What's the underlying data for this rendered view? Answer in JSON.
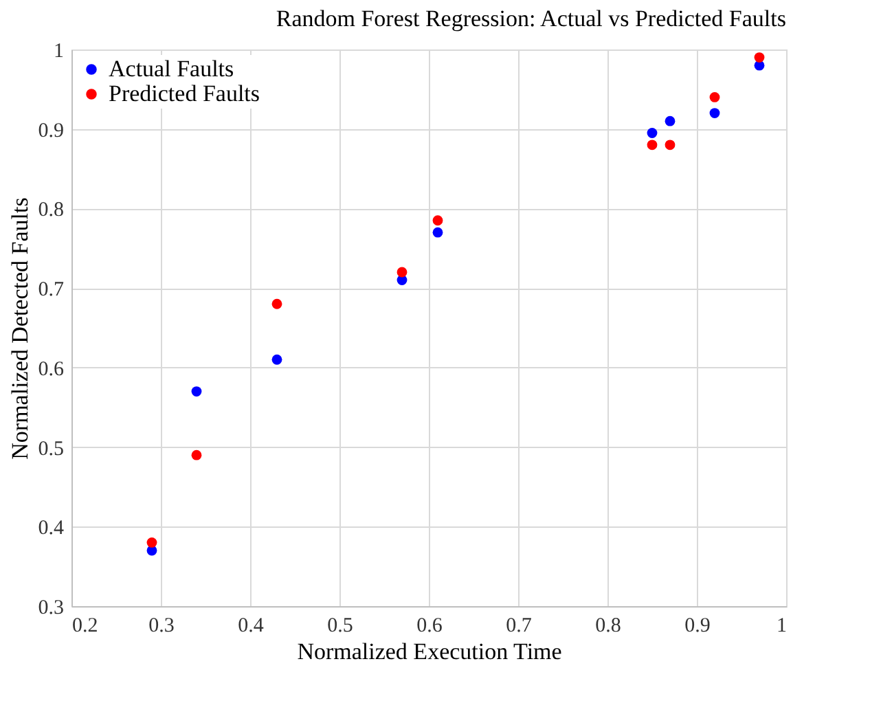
{
  "chart_data": {
    "type": "scatter",
    "title": "Random Forest Regression: Actual vs Predicted Faults",
    "xlabel": "Normalized Execution Time",
    "ylabel": "Normalized Detected Faults",
    "x": [
      0.29,
      0.34,
      0.43,
      0.57,
      0.61,
      0.85,
      0.87,
      0.92,
      0.97
    ],
    "series": [
      {
        "name": "Actual Faults",
        "color": "#0000ff",
        "values": [
          0.37,
          0.57,
          0.61,
          0.71,
          0.77,
          0.895,
          0.91,
          0.92,
          0.98
        ]
      },
      {
        "name": "Predicted Faults",
        "color": "#ff0000",
        "values": [
          0.38,
          0.49,
          0.68,
          0.72,
          0.785,
          0.88,
          0.88,
          0.94,
          0.99
        ]
      }
    ],
    "xlim": [
      0.2,
      1
    ],
    "xticks": [
      0.2,
      0.3,
      0.4,
      0.5,
      0.6,
      0.7,
      0.8,
      0.9,
      1
    ],
    "ylim": [
      0.3,
      1
    ],
    "yticks": [
      0.3,
      0.4,
      0.5,
      0.6,
      0.7,
      0.8,
      0.9,
      1
    ],
    "grid": true,
    "legend": "top left",
    "marker": "circle"
  }
}
